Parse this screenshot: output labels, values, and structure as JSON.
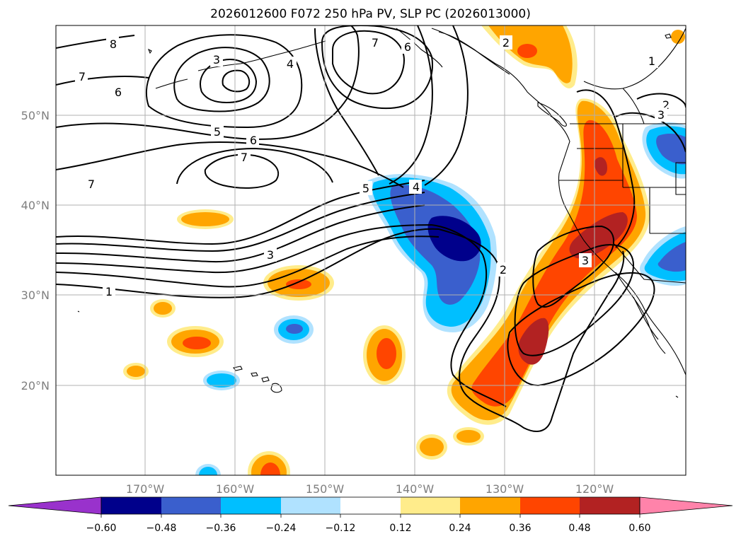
{
  "title": "2026012600 F072 250 hPa PV, SLP PC (2026013000)",
  "map": {
    "lon_labels": [
      "170°W",
      "160°W",
      "150°W",
      "140°W",
      "130°W",
      "120°W"
    ],
    "lat_labels": [
      "50°N",
      "40°N",
      "30°N",
      "20°N"
    ],
    "contour_labels": [
      "8",
      "7",
      "6",
      "3",
      "4",
      "7",
      "6",
      "2",
      "1",
      "2",
      "3",
      "5",
      "6",
      "7",
      "7",
      "5",
      "4",
      "3",
      "2",
      "3",
      "1"
    ]
  },
  "colorbar": {
    "tick_labels": [
      "−0.60",
      "−0.48",
      "−0.36",
      "−0.24",
      "−0.12",
      "0.12",
      "0.24",
      "0.36",
      "0.48",
      "0.60"
    ],
    "colors": [
      "#9932cc",
      "#00008b",
      "#3a5fcd",
      "#00bfff",
      "#b0e2ff",
      "#ffffff",
      "#ffec8b",
      "#ffa500",
      "#ff4500",
      "#b22222",
      "#ff83aa"
    ]
  },
  "colors": {
    "neg_low": "#00008b",
    "neg_mid": "#3a5fcd",
    "neg_high": "#00bfff",
    "neg_faint": "#b0e2ff",
    "pos_faint": "#ffec8b",
    "pos_mid": "#ffa500",
    "pos_high": "#ff4500",
    "pos_top": "#b22222",
    "grid": "#b0b0b0",
    "tick_text": "#7f7f7f"
  }
}
